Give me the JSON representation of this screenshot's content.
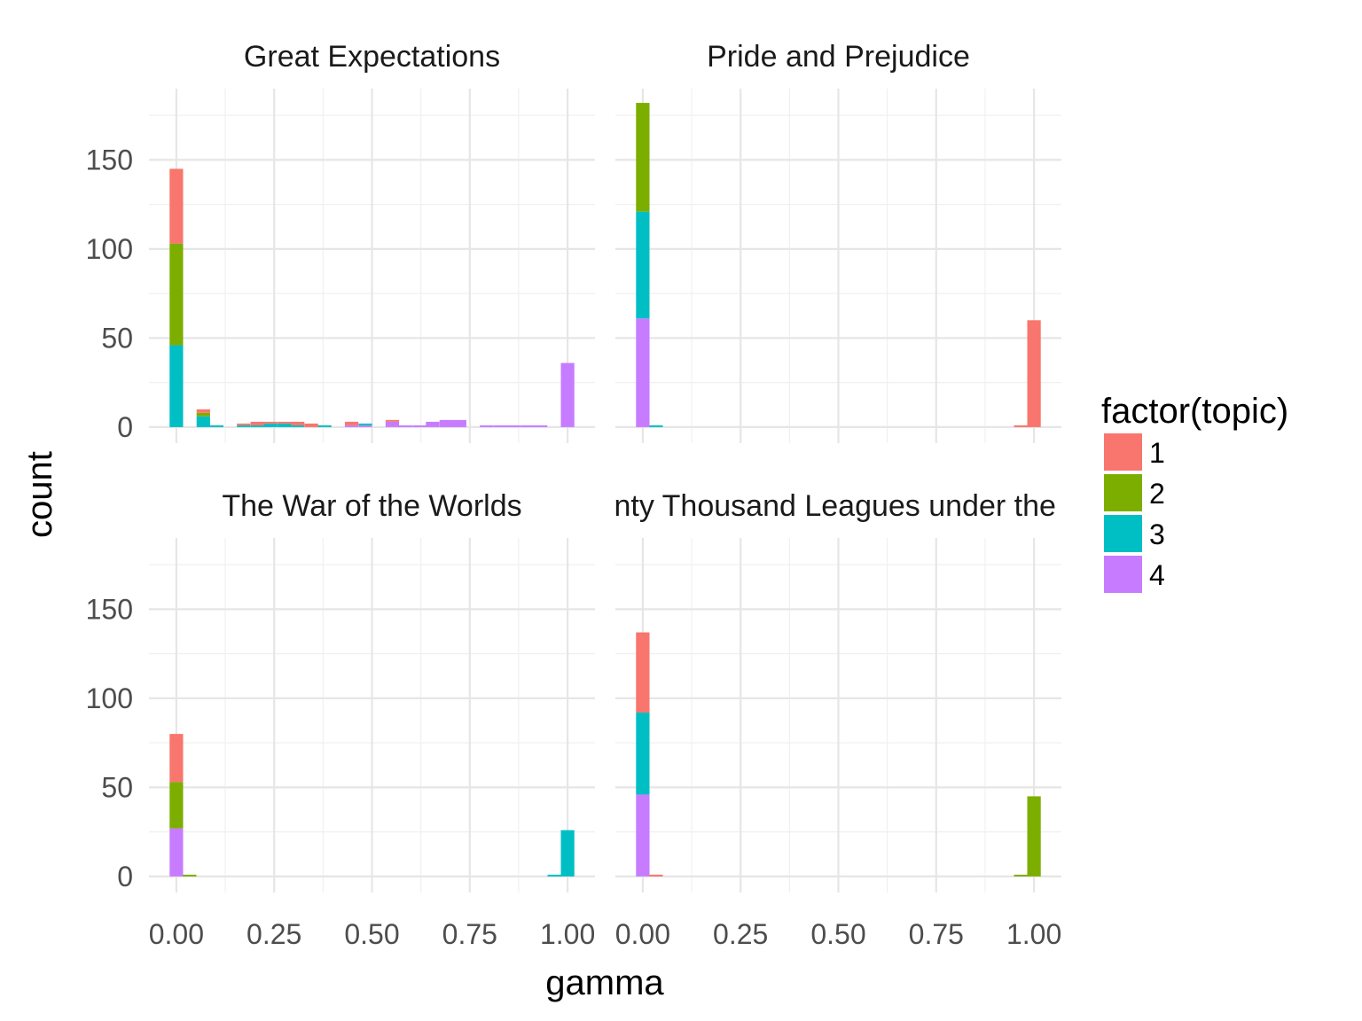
{
  "chart_data": {
    "type": "bar",
    "stacked": true,
    "xlabel": "gamma",
    "ylabel": "count",
    "xlim": [
      -0.07,
      1.07
    ],
    "ylim": [
      -9,
      190
    ],
    "x_ticks": [
      0.0,
      0.25,
      0.5,
      0.75,
      1.0
    ],
    "x_tick_labels": [
      "0.00",
      "0.25",
      "0.50",
      "0.75",
      "1.00"
    ],
    "y_ticks": [
      0,
      50,
      100,
      150
    ],
    "y_tick_labels": [
      "0",
      "50",
      "100",
      "150"
    ],
    "bin_width": 0.0345,
    "grid": true,
    "legend": {
      "title": "factor(topic)",
      "position": "right",
      "entries": [
        "1",
        "2",
        "3",
        "4"
      ]
    },
    "series_colors": [
      "#F8766D",
      "#7CAE00",
      "#00BFC4",
      "#C77CFF"
    ],
    "panels": [
      {
        "title": "Great Expectations",
        "bins": [
          {
            "x": 0.0,
            "values": [
              42,
              57,
              46,
              0
            ]
          },
          {
            "x": 0.069,
            "values": [
              2,
              2,
              6,
              0
            ]
          },
          {
            "x": 0.103,
            "values": [
              0,
              0,
              1,
              0
            ]
          },
          {
            "x": 0.172,
            "values": [
              1,
              0,
              1,
              0
            ]
          },
          {
            "x": 0.207,
            "values": [
              2,
              0,
              1,
              0
            ]
          },
          {
            "x": 0.241,
            "values": [
              1,
              0,
              2,
              0
            ]
          },
          {
            "x": 0.276,
            "values": [
              1,
              0,
              2,
              0
            ]
          },
          {
            "x": 0.31,
            "values": [
              2,
              0,
              1,
              0
            ]
          },
          {
            "x": 0.345,
            "values": [
              2,
              0,
              0,
              0
            ]
          },
          {
            "x": 0.379,
            "values": [
              0,
              0,
              1,
              0
            ]
          },
          {
            "x": 0.448,
            "values": [
              2,
              0,
              0,
              1
            ]
          },
          {
            "x": 0.483,
            "values": [
              0,
              0,
              1,
              1
            ]
          },
          {
            "x": 0.552,
            "values": [
              1,
              0,
              0,
              3
            ]
          },
          {
            "x": 0.586,
            "values": [
              0,
              0,
              0,
              1
            ]
          },
          {
            "x": 0.621,
            "values": [
              0,
              0,
              0,
              1
            ]
          },
          {
            "x": 0.655,
            "values": [
              0,
              0,
              0,
              3
            ]
          },
          {
            "x": 0.69,
            "values": [
              0,
              0,
              0,
              4
            ]
          },
          {
            "x": 0.724,
            "values": [
              0,
              0,
              0,
              4
            ]
          },
          {
            "x": 0.793,
            "values": [
              0,
              0,
              0,
              1
            ]
          },
          {
            "x": 0.828,
            "values": [
              0,
              0,
              0,
              1
            ]
          },
          {
            "x": 0.862,
            "values": [
              0,
              0,
              0,
              1
            ]
          },
          {
            "x": 0.897,
            "values": [
              0,
              0,
              0,
              1
            ]
          },
          {
            "x": 0.931,
            "values": [
              0,
              0,
              0,
              1
            ]
          },
          {
            "x": 1.0,
            "values": [
              0,
              0,
              0,
              36
            ]
          }
        ]
      },
      {
        "title": "Pride and Prejudice",
        "bins": [
          {
            "x": 0.0,
            "values": [
              0,
              61,
              60,
              61
            ]
          },
          {
            "x": 0.034,
            "values": [
              0,
              0,
              1,
              0
            ]
          },
          {
            "x": 0.966,
            "values": [
              1,
              0,
              0,
              0
            ]
          },
          {
            "x": 1.0,
            "values": [
              60,
              0,
              0,
              0
            ]
          }
        ]
      },
      {
        "title": "The War of the Worlds",
        "bins": [
          {
            "x": 0.0,
            "values": [
              27,
              26,
              0,
              27
            ]
          },
          {
            "x": 0.034,
            "values": [
              0,
              1,
              0,
              0
            ]
          },
          {
            "x": 0.966,
            "values": [
              0,
              0,
              1,
              0
            ]
          },
          {
            "x": 1.0,
            "values": [
              0,
              0,
              26,
              0
            ]
          }
        ]
      },
      {
        "title": "Twenty Thousand Leagues under the Sea",
        "bins": [
          {
            "x": 0.0,
            "values": [
              45,
              0,
              46,
              46
            ]
          },
          {
            "x": 0.034,
            "values": [
              1,
              0,
              0,
              0
            ]
          },
          {
            "x": 0.966,
            "values": [
              0,
              1,
              0,
              0
            ]
          },
          {
            "x": 1.0,
            "values": [
              0,
              45,
              0,
              0
            ]
          }
        ]
      }
    ]
  }
}
